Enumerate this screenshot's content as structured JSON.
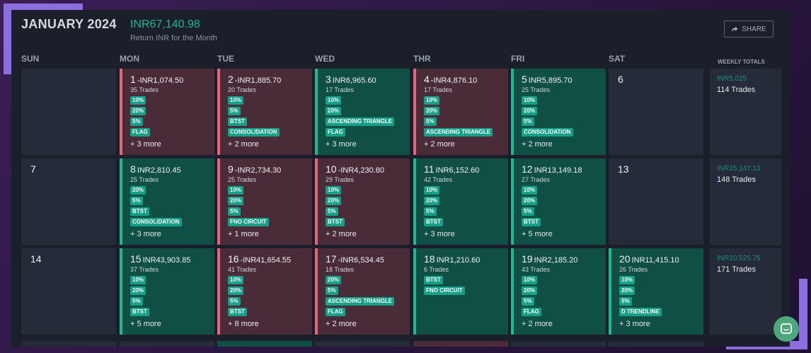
{
  "header": {
    "month": "JANUARY 2024",
    "return_amount": "INR67,140.98",
    "return_label": "Return INR for the Month",
    "share_label": "SHARE"
  },
  "days_of_week": [
    "SUN",
    "MON",
    "TUE",
    "WED",
    "THR",
    "FRI",
    "SAT"
  ],
  "weekly_totals_label": "WEEKLY TOTALS",
  "weeks": [
    {
      "days": [
        {
          "day": "",
          "type": "empty"
        },
        {
          "day": "1",
          "type": "loss",
          "pnl": "-INR1,074.50",
          "trades": "35 Trades",
          "tags": [
            "10%",
            "20%",
            "5%",
            "FLAG"
          ],
          "more": "+ 3 more"
        },
        {
          "day": "2",
          "type": "loss",
          "pnl": "-INR1,885.70",
          "trades": "20 Trades",
          "tags": [
            "10%",
            "5%",
            "BTST",
            "CONSOLIDATION"
          ],
          "more": "+ 2 more"
        },
        {
          "day": "3",
          "type": "win",
          "pnl": "INR6,965.60",
          "trades": "17 Trades",
          "tags": [
            "10%",
            "20%",
            "ASCENDING TRIANGLE",
            "FLAG"
          ],
          "more": "+ 3 more"
        },
        {
          "day": "4",
          "type": "loss",
          "pnl": "-INR4,876.10",
          "trades": "17 Trades",
          "tags": [
            "10%",
            "20%",
            "5%",
            "ASCENDING TRIANGLE"
          ],
          "more": "+ 2 more"
        },
        {
          "day": "5",
          "type": "win",
          "pnl": "INR5,895.70",
          "trades": "25 Trades",
          "tags": [
            "10%",
            "20%",
            "5%",
            "CONSOLIDATION"
          ],
          "more": "+ 2 more"
        },
        {
          "day": "6",
          "type": "empty"
        }
      ],
      "total_pnl": "INR5,025",
      "total_trades": "114 Trades"
    },
    {
      "days": [
        {
          "day": "7",
          "type": "empty"
        },
        {
          "day": "8",
          "type": "win",
          "pnl": "INR2,810.45",
          "trades": "25 Trades",
          "tags": [
            "20%",
            "5%",
            "BTST",
            "CONSOLIDATION"
          ],
          "more": "+ 3 more"
        },
        {
          "day": "9",
          "type": "loss",
          "pnl": "-INR2,734.30",
          "trades": "25 Trades",
          "tags": [
            "10%",
            "20%",
            "5%",
            "FNO CIRCUIT"
          ],
          "more": "+ 1 more"
        },
        {
          "day": "10",
          "type": "loss",
          "pnl": "-INR4,230.80",
          "trades": "29 Trades",
          "tags": [
            "10%",
            "20%",
            "5%",
            "BTST"
          ],
          "more": "+ 2 more"
        },
        {
          "day": "11",
          "type": "win",
          "pnl": "INR6,152.60",
          "trades": "42 Trades",
          "tags": [
            "10%",
            "20%",
            "5%",
            "BTST"
          ],
          "more": "+ 3 more"
        },
        {
          "day": "12",
          "type": "win",
          "pnl": "INR13,149.18",
          "trades": "27 Trades",
          "tags": [
            "10%",
            "20%",
            "5%",
            "BTST"
          ],
          "more": "+ 5 more"
        },
        {
          "day": "13",
          "type": "empty"
        }
      ],
      "total_pnl": "INR15,147.13",
      "total_trades": "148 Trades"
    },
    {
      "days": [
        {
          "day": "14",
          "type": "empty"
        },
        {
          "day": "15",
          "type": "win",
          "pnl": "INR43,903.85",
          "trades": "37 Trades",
          "tags": [
            "10%",
            "20%",
            "5%",
            "BTST"
          ],
          "more": "+ 5 more"
        },
        {
          "day": "16",
          "type": "loss",
          "pnl": "-INR41,654.55",
          "trades": "41 Trades",
          "tags": [
            "10%",
            "20%",
            "5%",
            "BTST"
          ],
          "more": "+ 8 more"
        },
        {
          "day": "17",
          "type": "loss",
          "pnl": "-INR6,534.45",
          "trades": "18 Trades",
          "tags": [
            "20%",
            "5%",
            "ASCENDING TRIANGLE",
            "FLAG"
          ],
          "more": "+ 2 more"
        },
        {
          "day": "18",
          "type": "win",
          "pnl": "INR1,210.60",
          "trades": "6 Trades",
          "tags": [
            "BTST",
            "FNO CIRCUIT"
          ],
          "more": ""
        },
        {
          "day": "19",
          "type": "win",
          "pnl": "INR2,185.20",
          "trades": "43 Trades",
          "tags": [
            "10%",
            "20%",
            "5%",
            "FLAG"
          ],
          "more": "+ 2 more"
        },
        {
          "day": "20",
          "type": "win",
          "pnl": "INR11,415.10",
          "trades": "26 Trades",
          "tags": [
            "10%",
            "20%",
            "5%",
            "D TRENDLINE"
          ],
          "more": "+ 3 more"
        }
      ],
      "total_pnl": "INR10,525.75",
      "total_trades": "171 Trades"
    }
  ],
  "colors": {
    "win_bg": "#0f4f44",
    "win_accent": "#1fb894",
    "loss_bg": "#4a2c38",
    "loss_accent": "#e5657a",
    "tag_bg": "#15a088"
  },
  "icons": {
    "share": "share-arrow-icon",
    "chat": "chat-bubble-icon"
  }
}
